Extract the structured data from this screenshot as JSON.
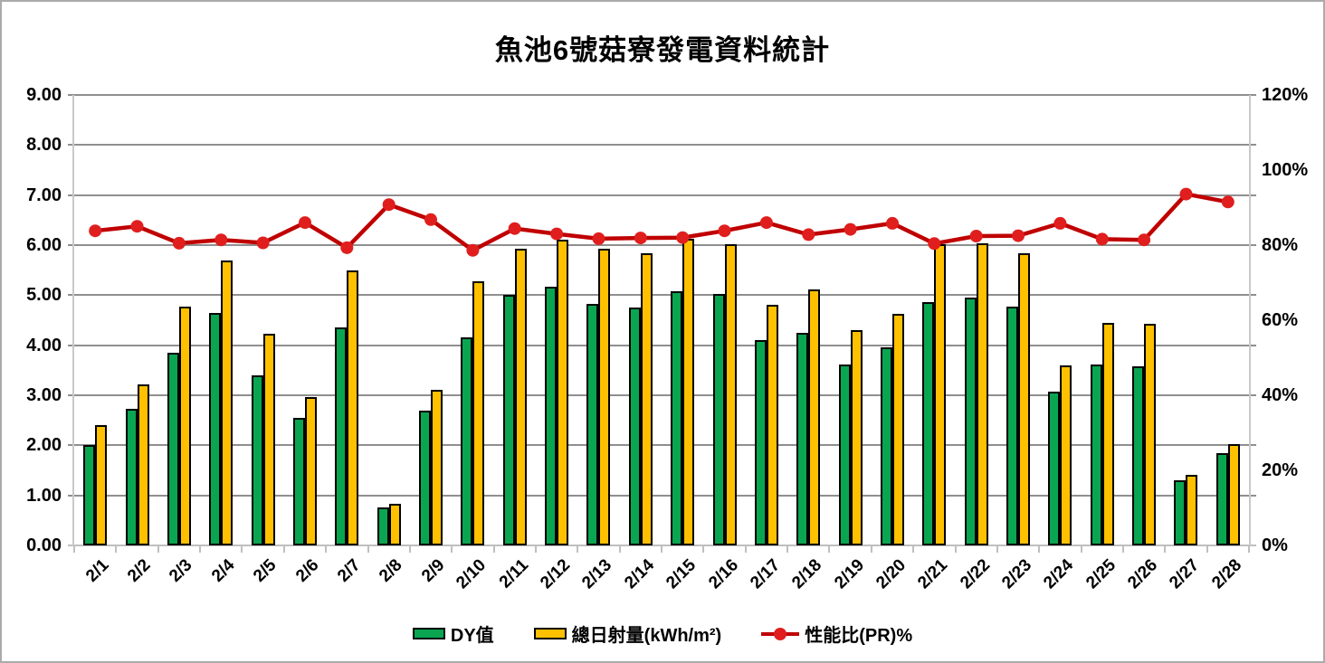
{
  "chart_data": {
    "type": "combo-bar-line",
    "title": "魚池6號菇寮發電資料統計",
    "categories": [
      "2/1",
      "2/2",
      "2/3",
      "2/4",
      "2/5",
      "2/6",
      "2/7",
      "2/8",
      "2/9",
      "2/10",
      "2/11",
      "2/12",
      "2/13",
      "2/14",
      "2/15",
      "2/16",
      "2/17",
      "2/18",
      "2/19",
      "2/20",
      "2/21",
      "2/22",
      "2/23",
      "2/24",
      "2/25",
      "2/26",
      "2/27",
      "2/28"
    ],
    "series": [
      {
        "name": "DY值",
        "type": "bar",
        "axis": "left",
        "color": "#0aa551",
        "values": [
          2.0,
          2.73,
          3.85,
          4.65,
          3.4,
          2.55,
          4.35,
          0.76,
          2.7,
          4.15,
          5.0,
          5.17,
          4.83,
          4.76,
          5.07,
          5.03,
          4.1,
          4.24,
          3.62,
          3.95,
          4.86,
          4.95,
          4.78,
          3.08,
          3.62,
          3.58,
          1.3,
          1.85
        ]
      },
      {
        "name": "總日射量(kWh/m²)",
        "type": "bar",
        "axis": "left",
        "color": "#ffc000",
        "values": [
          2.4,
          3.22,
          4.77,
          5.7,
          4.22,
          2.96,
          5.5,
          0.84,
          3.1,
          5.27,
          5.92,
          6.1,
          5.92,
          5.84,
          6.12,
          6.02,
          4.8,
          5.12,
          4.3,
          4.62,
          6.02,
          6.03,
          5.83,
          3.6,
          4.44,
          4.42,
          1.41,
          2.02
        ]
      },
      {
        "name": "性能比(PR)%",
        "type": "line",
        "axis": "right",
        "line_color": "#c00000",
        "marker_color": "#e01e1e",
        "values_percent": [
          83.8,
          85.0,
          80.5,
          81.4,
          80.6,
          86.0,
          79.3,
          90.8,
          86.8,
          78.6,
          84.4,
          83.0,
          81.7,
          81.9,
          82.0,
          83.8,
          86.0,
          82.8,
          84.2,
          85.8,
          80.4,
          82.4,
          82.5,
          85.8,
          81.6,
          81.4,
          93.6,
          91.5
        ]
      }
    ],
    "left_axis": {
      "min": 0,
      "max": 9,
      "step": 1,
      "tick_labels": [
        "0.00",
        "1.00",
        "2.00",
        "3.00",
        "4.00",
        "5.00",
        "6.00",
        "7.00",
        "8.00",
        "9.00"
      ]
    },
    "right_axis": {
      "min": 0,
      "max": 120,
      "step": 20,
      "tick_labels": [
        "0%",
        "20%",
        "40%",
        "60%",
        "80%",
        "100%",
        "120%"
      ]
    },
    "legend": {
      "position": "bottom",
      "entries": [
        "DY值",
        "總日射量(kWh/m²)",
        "性能比(PR)%"
      ]
    },
    "grid": "horizontal-on"
  }
}
